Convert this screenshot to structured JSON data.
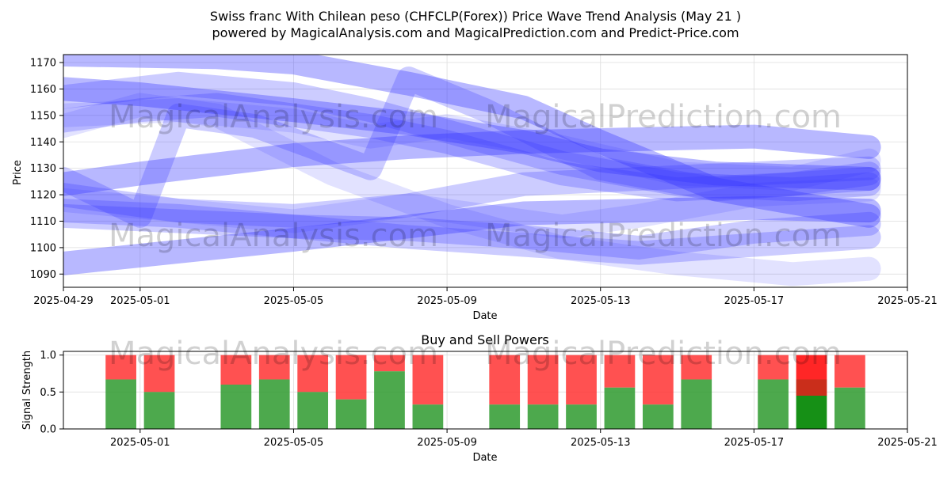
{
  "title_line1": "Swiss franc With Chilean peso (CHFCLP(Forex)) Price Wave Trend Analysis (May 21 )",
  "title_line2": "powered by MagicalAnalysis.com and MagicalPrediction.com and Predict-Price.com",
  "watermark_left": "MagicalAnalysis.com",
  "watermark_right": "MagicalPrediction.com",
  "colors": {
    "wave": "#3333ff",
    "buy": "#2e9a2e",
    "sell": "#ff3333",
    "buy_strong": "#0a8a0a",
    "sell_strong": "#ff1a1a"
  },
  "chart_data": [
    {
      "type": "line",
      "title": "",
      "xlabel": "Date",
      "ylabel": "Price",
      "xlim": [
        "2025-04-29",
        "2025-05-21"
      ],
      "ylim": [
        1085,
        1173
      ],
      "x_ticks": [
        "2025-04-29",
        "2025-05-01",
        "2025-05-05",
        "2025-05-09",
        "2025-05-13",
        "2025-05-17",
        "2025-05-21"
      ],
      "y_ticks": [
        1090,
        1100,
        1110,
        1120,
        1130,
        1140,
        1150,
        1160,
        1170
      ],
      "grid": true,
      "series": [
        {
          "opacity": 0.35,
          "points": [
            [
              "2025-04-29",
              1160
            ],
            [
              "2025-05-01",
              1158
            ],
            [
              "2025-05-05",
              1152
            ],
            [
              "2025-05-08",
              1147
            ],
            [
              "2025-05-11",
              1140
            ],
            [
              "2025-05-13",
              1133
            ],
            [
              "2025-05-16",
              1128
            ],
            [
              "2025-05-20",
              1126
            ]
          ]
        },
        {
          "opacity": 0.35,
          "points": [
            [
              "2025-04-29",
              1173
            ],
            [
              "2025-05-03",
              1172
            ],
            [
              "2025-05-05",
              1170
            ],
            [
              "2025-05-08",
              1162
            ],
            [
              "2025-05-11",
              1153
            ],
            [
              "2025-05-13",
              1140
            ],
            [
              "2025-05-16",
              1122
            ],
            [
              "2025-05-20",
              1112
            ]
          ]
        },
        {
          "opacity": 0.35,
          "points": [
            [
              "2025-04-29",
              1124
            ],
            [
              "2025-05-01",
              1128
            ],
            [
              "2025-05-05",
              1135
            ],
            [
              "2025-05-08",
              1138
            ],
            [
              "2025-05-11",
              1140
            ],
            [
              "2025-05-14",
              1141
            ],
            [
              "2025-05-17",
              1142
            ],
            [
              "2025-05-20",
              1138
            ]
          ]
        },
        {
          "opacity": 0.35,
          "points": [
            [
              "2025-04-29",
              1094
            ],
            [
              "2025-05-01",
              1097
            ],
            [
              "2025-05-05",
              1103
            ],
            [
              "2025-05-08",
              1108
            ],
            [
              "2025-05-11",
              1113
            ],
            [
              "2025-05-14",
              1114
            ],
            [
              "2025-05-17",
              1115
            ],
            [
              "2025-05-20",
              1114
            ]
          ]
        },
        {
          "opacity": 0.25,
          "points": [
            [
              "2025-04-29",
              1114
            ],
            [
              "2025-05-02",
              1112
            ],
            [
              "2025-05-05",
              1108
            ],
            [
              "2025-05-08",
              1104
            ],
            [
              "2025-05-11",
              1101
            ],
            [
              "2025-05-14",
              1098
            ],
            [
              "2025-05-17",
              1101
            ],
            [
              "2025-05-20",
              1104
            ]
          ]
        },
        {
          "opacity": 0.25,
          "points": [
            [
              "2025-04-29",
              1120
            ],
            [
              "2025-05-02",
              1114
            ],
            [
              "2025-05-05",
              1112
            ],
            [
              "2025-05-08",
              1116
            ],
            [
              "2025-05-11",
              1124
            ],
            [
              "2025-05-14",
              1126
            ],
            [
              "2025-05-17",
              1128
            ],
            [
              "2025-05-20",
              1130
            ]
          ]
        },
        {
          "opacity": 0.25,
          "points": [
            [
              "2025-04-29",
              1157
            ],
            [
              "2025-05-02",
              1162
            ],
            [
              "2025-05-05",
              1158
            ],
            [
              "2025-05-07",
              1152
            ],
            [
              "2025-05-09",
              1144
            ],
            [
              "2025-05-12",
              1132
            ],
            [
              "2025-05-15",
              1124
            ],
            [
              "2025-05-18",
              1122
            ],
            [
              "2025-05-20",
              1124
            ]
          ]
        },
        {
          "opacity": 0.25,
          "points": [
            [
              "2025-04-29",
              1148
            ],
            [
              "2025-05-01",
              1152
            ],
            [
              "2025-05-03",
              1154
            ],
            [
              "2025-05-05",
              1150
            ],
            [
              "2025-05-07",
              1146
            ],
            [
              "2025-05-09",
              1140
            ],
            [
              "2025-05-12",
              1128
            ],
            [
              "2025-05-15",
              1122
            ],
            [
              "2025-05-18",
              1124
            ],
            [
              "2025-05-20",
              1128
            ]
          ]
        },
        {
          "opacity": 0.25,
          "points": [
            [
              "2025-04-29",
              1112
            ],
            [
              "2025-05-02",
              1110
            ],
            [
              "2025-05-05",
              1108
            ],
            [
              "2025-05-08",
              1107
            ],
            [
              "2025-05-11",
              1104
            ],
            [
              "2025-05-14",
              1100
            ],
            [
              "2025-05-17",
              1106
            ],
            [
              "2025-05-20",
              1109
            ]
          ]
        },
        {
          "opacity": 0.25,
          "points": [
            [
              "2025-04-29",
              1126
            ],
            [
              "2025-05-01",
              1112
            ],
            [
              "2025-05-02",
              1150
            ],
            [
              "2025-05-04",
              1146
            ],
            [
              "2025-05-07",
              1130
            ],
            [
              "2025-05-08",
              1164
            ],
            [
              "2025-05-10",
              1152
            ],
            [
              "2025-05-13",
              1130
            ],
            [
              "2025-05-16",
              1122
            ],
            [
              "2025-05-20",
              1126
            ]
          ]
        },
        {
          "opacity": 0.14,
          "points": [
            [
              "2025-04-29",
              1146
            ],
            [
              "2025-05-01",
              1154
            ],
            [
              "2025-05-03",
              1150
            ],
            [
              "2025-05-06",
              1128
            ],
            [
              "2025-05-09",
              1112
            ],
            [
              "2025-05-12",
              1100
            ],
            [
              "2025-05-15",
              1094
            ],
            [
              "2025-05-18",
              1090
            ],
            [
              "2025-05-20",
              1092
            ]
          ]
        },
        {
          "opacity": 0.14,
          "points": [
            [
              "2025-04-29",
              1150
            ],
            [
              "2025-05-02",
              1152
            ],
            [
              "2025-05-05",
              1148
            ],
            [
              "2025-05-07",
              1142
            ],
            [
              "2025-05-09",
              1146
            ],
            [
              "2025-05-12",
              1138
            ],
            [
              "2025-05-15",
              1128
            ],
            [
              "2025-05-18",
              1126
            ],
            [
              "2025-05-20",
              1133
            ]
          ]
        },
        {
          "opacity": 0.14,
          "points": [
            [
              "2025-04-29",
              1118
            ],
            [
              "2025-05-02",
              1114
            ],
            [
              "2025-05-05",
              1110
            ],
            [
              "2025-05-08",
              1116
            ],
            [
              "2025-05-10",
              1112
            ],
            [
              "2025-05-12",
              1108
            ],
            [
              "2025-05-14",
              1112
            ],
            [
              "2025-05-17",
              1120
            ],
            [
              "2025-05-20",
              1122
            ]
          ]
        }
      ]
    },
    {
      "type": "bar",
      "title": "Buy and Sell Powers",
      "xlabel": "Date",
      "ylabel": "Signal Strength",
      "ylim": [
        0,
        1.05
      ],
      "xlim": [
        "2025-04-29",
        "2025-05-21"
      ],
      "x_ticks": [
        "2025-05-01",
        "2025-05-05",
        "2025-05-09",
        "2025-05-13",
        "2025-05-17",
        "2025-05-21"
      ],
      "y_ticks": [
        0.0,
        0.5,
        1.0
      ],
      "grid": true,
      "bars": [
        {
          "date": "2025-04-30",
          "buy": 0.67
        },
        {
          "date": "2025-05-01",
          "buy": 0.5
        },
        {
          "date": "2025-05-03",
          "buy": 0.6
        },
        {
          "date": "2025-05-04",
          "buy": 0.67
        },
        {
          "date": "2025-05-05",
          "buy": 0.5
        },
        {
          "date": "2025-05-06",
          "buy": 0.4
        },
        {
          "date": "2025-05-07",
          "buy": 0.78
        },
        {
          "date": "2025-05-08",
          "buy": 0.33
        },
        {
          "date": "2025-05-10",
          "buy": 0.33
        },
        {
          "date": "2025-05-11",
          "buy": 0.33
        },
        {
          "date": "2025-05-12",
          "buy": 0.33
        },
        {
          "date": "2025-05-13",
          "buy": 0.56
        },
        {
          "date": "2025-05-14",
          "buy": 0.33
        },
        {
          "date": "2025-05-15",
          "buy": 0.67
        },
        {
          "date": "2025-05-17",
          "buy": 0.67
        },
        {
          "date": "2025-05-18",
          "buy": 0.45,
          "highlight": true
        },
        {
          "date": "2025-05-19",
          "buy": 0.56
        }
      ]
    }
  ]
}
